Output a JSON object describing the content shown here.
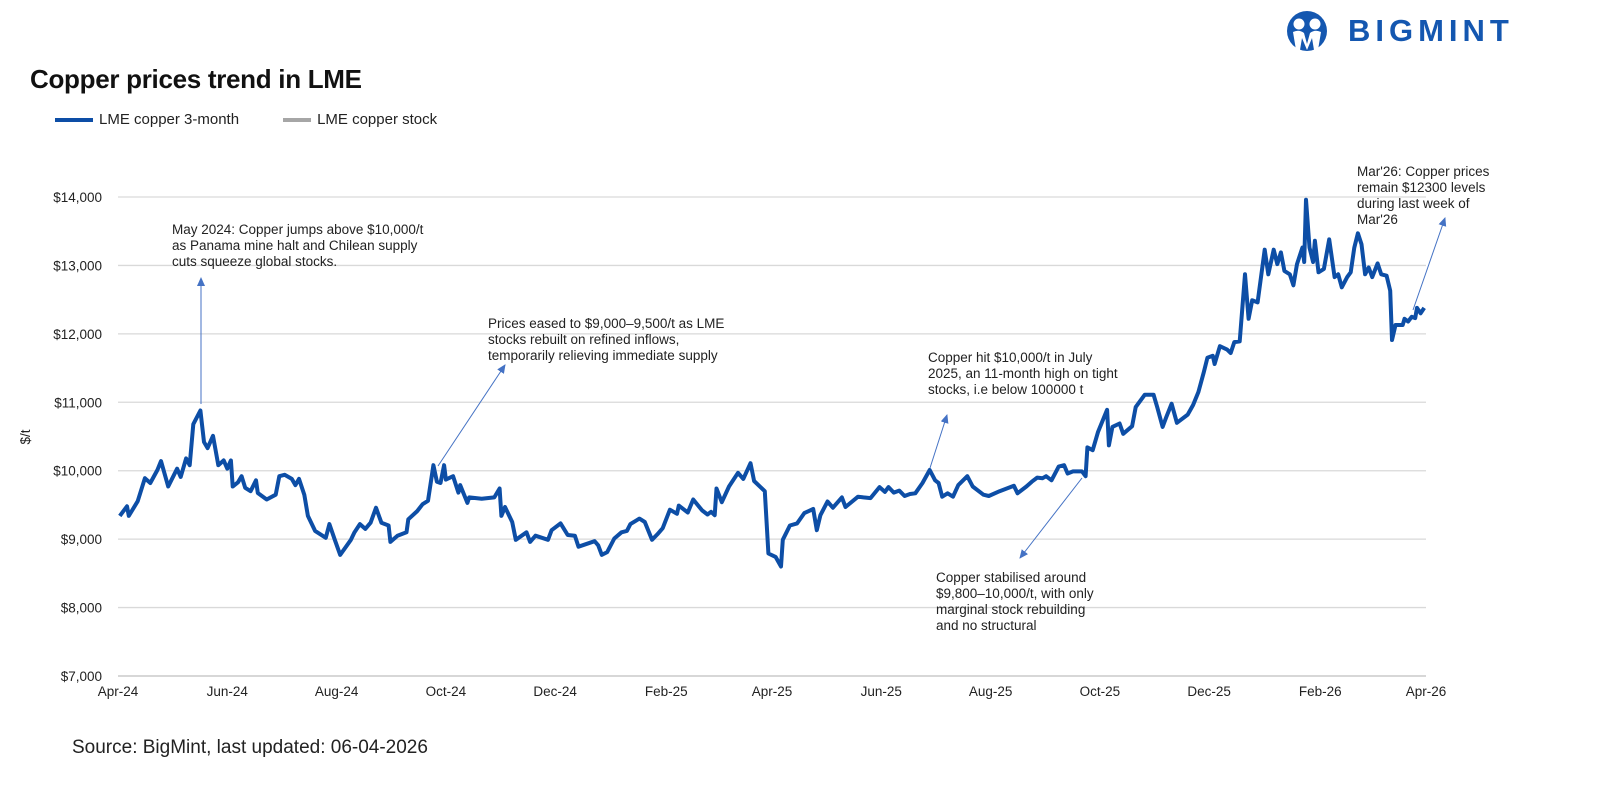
{
  "header": {
    "title": "Copper prices trend in LME",
    "logo_text": "BIGMINT",
    "source": "Source: BigMint, last updated: 06-04-2026"
  },
  "colors": {
    "series": "#0d4ea6",
    "stock": "#a6a6a6",
    "grid": "#d9d9d9",
    "annotation_arrow": "#4472c4",
    "brand": "#1457b0"
  },
  "annotations": [
    "May 2024: Copper jumps above $10,000/t\nas Panama mine halt and Chilean supply\ncuts squeeze global stocks.",
    "Prices eased to $9,000–9,500/t as LME\nstocks rebuilt on refined inflows,\ntemporarily relieving immediate supply",
    "Copper hit $10,000/t in July\n2025, an 11-month high on tight\nstocks, i.e below 100000 t",
    "Copper stabilised around\n$9,800–10,000/t, with only\nmarginal stock rebuilding\nand no structural",
    "Mar'26: Copper prices\nremain $12300 levels\nduring last week of\nMar'26"
  ],
  "chart_data": {
    "type": "line",
    "title": "Copper prices trend in LME",
    "xlabel": "",
    "ylabel": "$/t",
    "ylim": [
      7000,
      14000
    ],
    "xlim": [
      "2024-04-01",
      "2026-04-01"
    ],
    "grid": true,
    "legend_position": "top-left",
    "y_ticks": [
      "$7,000",
      "$8,000",
      "$9,000",
      "$10,000",
      "$11,000",
      "$12,000",
      "$13,000",
      "$14,000"
    ],
    "y_tick_values": [
      7000,
      8000,
      9000,
      10000,
      11000,
      12000,
      13000,
      14000
    ],
    "x_ticks": [
      "Apr-24",
      "Jun-24",
      "Aug-24",
      "Oct-24",
      "Dec-24",
      "Feb-25",
      "Apr-25",
      "Jun-25",
      "Aug-25",
      "Oct-25",
      "Dec-25",
      "Feb-26",
      "Apr-26"
    ],
    "x_tick_dates": [
      "2024-04-01",
      "2024-06-01",
      "2024-08-01",
      "2024-10-01",
      "2024-12-01",
      "2025-02-01",
      "2025-04-01",
      "2025-06-01",
      "2025-08-01",
      "2025-10-01",
      "2025-12-01",
      "2026-02-01",
      "2026-04-01"
    ],
    "legend": [
      "LME copper 3-month",
      "LME copper stock"
    ],
    "series": [
      {
        "name": "LME copper 3-month",
        "points": [
          [
            "2024-04-02",
            9340
          ],
          [
            "2024-04-06",
            9480
          ],
          [
            "2024-04-07",
            9340
          ],
          [
            "2024-04-12",
            9555
          ],
          [
            "2024-04-16",
            9890
          ],
          [
            "2024-04-19",
            9820
          ],
          [
            "2024-04-23",
            10010
          ],
          [
            "2024-04-25",
            10140
          ],
          [
            "2024-04-29",
            9770
          ],
          [
            "2024-05-04",
            10030
          ],
          [
            "2024-05-06",
            9910
          ],
          [
            "2024-05-09",
            10180
          ],
          [
            "2024-05-11",
            10080
          ],
          [
            "2024-05-13",
            10680
          ],
          [
            "2024-05-17",
            10880
          ],
          [
            "2024-05-19",
            10420
          ],
          [
            "2024-05-21",
            10330
          ],
          [
            "2024-05-24",
            10510
          ],
          [
            "2024-05-27",
            10080
          ],
          [
            "2024-05-30",
            10150
          ],
          [
            "2024-06-01",
            10030
          ],
          [
            "2024-06-03",
            10150
          ],
          [
            "2024-06-04",
            9770
          ],
          [
            "2024-06-07",
            9830
          ],
          [
            "2024-06-09",
            9920
          ],
          [
            "2024-06-11",
            9750
          ],
          [
            "2024-06-14",
            9700
          ],
          [
            "2024-06-17",
            9860
          ],
          [
            "2024-06-18",
            9675
          ],
          [
            "2024-06-23",
            9580
          ],
          [
            "2024-06-28",
            9650
          ],
          [
            "2024-06-30",
            9920
          ],
          [
            "2024-07-03",
            9940
          ],
          [
            "2024-07-07",
            9880
          ],
          [
            "2024-07-09",
            9790
          ],
          [
            "2024-07-11",
            9880
          ],
          [
            "2024-07-14",
            9650
          ],
          [
            "2024-07-16",
            9340
          ],
          [
            "2024-07-20",
            9120
          ],
          [
            "2024-07-26",
            9020
          ],
          [
            "2024-07-28",
            9220
          ],
          [
            "2024-07-31",
            8990
          ],
          [
            "2024-08-03",
            8770
          ],
          [
            "2024-08-09",
            8990
          ],
          [
            "2024-08-11",
            9100
          ],
          [
            "2024-08-14",
            9220
          ],
          [
            "2024-08-17",
            9150
          ],
          [
            "2024-08-20",
            9240
          ],
          [
            "2024-08-23",
            9460
          ],
          [
            "2024-08-26",
            9240
          ],
          [
            "2024-08-30",
            9200
          ],
          [
            "2024-08-31",
            8960
          ],
          [
            "2024-09-04",
            9050
          ],
          [
            "2024-09-09",
            9100
          ],
          [
            "2024-09-10",
            9290
          ],
          [
            "2024-09-15",
            9410
          ],
          [
            "2024-09-18",
            9510
          ],
          [
            "2024-09-21",
            9560
          ],
          [
            "2024-09-24",
            10080
          ],
          [
            "2024-09-26",
            9840
          ],
          [
            "2024-09-28",
            9820
          ],
          [
            "2024-09-30",
            10080
          ],
          [
            "2024-10-01",
            9870
          ],
          [
            "2024-10-05",
            9920
          ],
          [
            "2024-10-08",
            9680
          ],
          [
            "2024-10-09",
            9790
          ],
          [
            "2024-10-13",
            9530
          ],
          [
            "2024-10-14",
            9610
          ],
          [
            "2024-10-21",
            9590
          ],
          [
            "2024-10-28",
            9610
          ],
          [
            "2024-10-31",
            9740
          ],
          [
            "2024-11-01",
            9340
          ],
          [
            "2024-11-03",
            9470
          ],
          [
            "2024-11-07",
            9250
          ],
          [
            "2024-11-09",
            8990
          ],
          [
            "2024-11-15",
            9100
          ],
          [
            "2024-11-17",
            8960
          ],
          [
            "2024-11-20",
            9050
          ],
          [
            "2024-11-27",
            8990
          ],
          [
            "2024-11-29",
            9130
          ],
          [
            "2024-12-04",
            9230
          ],
          [
            "2024-12-08",
            9060
          ],
          [
            "2024-12-12",
            9050
          ],
          [
            "2024-12-14",
            8890
          ],
          [
            "2024-12-23",
            8970
          ],
          [
            "2024-12-25",
            8910
          ],
          [
            "2024-12-27",
            8770
          ],
          [
            "2024-12-30",
            8810
          ],
          [
            "2025-01-03",
            9010
          ],
          [
            "2025-01-07",
            9100
          ],
          [
            "2025-01-10",
            9120
          ],
          [
            "2025-01-12",
            9220
          ],
          [
            "2025-01-17",
            9300
          ],
          [
            "2025-01-20",
            9250
          ],
          [
            "2025-01-24",
            8990
          ],
          [
            "2025-01-27",
            9070
          ],
          [
            "2025-01-30",
            9160
          ],
          [
            "2025-02-03",
            9430
          ],
          [
            "2025-02-07",
            9370
          ],
          [
            "2025-02-08",
            9490
          ],
          [
            "2025-02-13",
            9390
          ],
          [
            "2025-02-16",
            9580
          ],
          [
            "2025-02-21",
            9420
          ],
          [
            "2025-02-24",
            9360
          ],
          [
            "2025-02-26",
            9400
          ],
          [
            "2025-02-28",
            9350
          ],
          [
            "2025-03-01",
            9740
          ],
          [
            "2025-03-04",
            9540
          ],
          [
            "2025-03-08",
            9770
          ],
          [
            "2025-03-13",
            9970
          ],
          [
            "2025-03-16",
            9880
          ],
          [
            "2025-03-20",
            10110
          ],
          [
            "2025-03-22",
            9850
          ],
          [
            "2025-03-28",
            9700
          ],
          [
            "2025-03-30",
            8790
          ],
          [
            "2025-04-03",
            8740
          ],
          [
            "2025-04-06",
            8600
          ],
          [
            "2025-04-07",
            8990
          ],
          [
            "2025-04-11",
            9200
          ],
          [
            "2025-04-15",
            9230
          ],
          [
            "2025-04-19",
            9380
          ],
          [
            "2025-04-24",
            9440
          ],
          [
            "2025-04-26",
            9130
          ],
          [
            "2025-04-28",
            9350
          ],
          [
            "2025-05-02",
            9550
          ],
          [
            "2025-05-05",
            9460
          ],
          [
            "2025-05-10",
            9610
          ],
          [
            "2025-05-12",
            9470
          ],
          [
            "2025-05-19",
            9620
          ],
          [
            "2025-05-22",
            9610
          ],
          [
            "2025-05-26",
            9600
          ],
          [
            "2025-05-31",
            9760
          ],
          [
            "2025-06-03",
            9690
          ],
          [
            "2025-06-05",
            9760
          ],
          [
            "2025-06-08",
            9680
          ],
          [
            "2025-06-11",
            9710
          ],
          [
            "2025-06-14",
            9630
          ],
          [
            "2025-06-17",
            9660
          ],
          [
            "2025-06-20",
            9670
          ],
          [
            "2025-06-24",
            9820
          ],
          [
            "2025-06-28",
            10010
          ],
          [
            "2025-07-01",
            9860
          ],
          [
            "2025-07-03",
            9820
          ],
          [
            "2025-07-05",
            9620
          ],
          [
            "2025-07-08",
            9670
          ],
          [
            "2025-07-11",
            9620
          ],
          [
            "2025-07-14",
            9790
          ],
          [
            "2025-07-19",
            9920
          ],
          [
            "2025-07-22",
            9770
          ],
          [
            "2025-07-28",
            9650
          ],
          [
            "2025-07-31",
            9630
          ],
          [
            "2025-08-06",
            9700
          ],
          [
            "2025-08-14",
            9780
          ],
          [
            "2025-08-16",
            9670
          ],
          [
            "2025-08-21",
            9770
          ],
          [
            "2025-08-24",
            9840
          ],
          [
            "2025-08-27",
            9900
          ],
          [
            "2025-08-30",
            9890
          ],
          [
            "2025-09-01",
            9920
          ],
          [
            "2025-09-04",
            9860
          ],
          [
            "2025-09-08",
            10060
          ],
          [
            "2025-09-11",
            10080
          ],
          [
            "2025-09-13",
            9960
          ],
          [
            "2025-09-16",
            9990
          ],
          [
            "2025-09-21",
            9990
          ],
          [
            "2025-09-23",
            9920
          ],
          [
            "2025-09-24",
            10340
          ],
          [
            "2025-09-27",
            10300
          ],
          [
            "2025-09-30",
            10570
          ],
          [
            "2025-10-05",
            10890
          ],
          [
            "2025-10-06",
            10370
          ],
          [
            "2025-10-08",
            10640
          ],
          [
            "2025-10-12",
            10690
          ],
          [
            "2025-10-14",
            10540
          ],
          [
            "2025-10-19",
            10650
          ],
          [
            "2025-10-21",
            10930
          ],
          [
            "2025-10-26",
            11110
          ],
          [
            "2025-10-31",
            11110
          ],
          [
            "2025-11-02",
            10930
          ],
          [
            "2025-11-05",
            10640
          ],
          [
            "2025-11-07",
            10780
          ],
          [
            "2025-11-10",
            10980
          ],
          [
            "2025-11-13",
            10700
          ],
          [
            "2025-11-19",
            10820
          ],
          [
            "2025-11-22",
            10960
          ],
          [
            "2025-11-25",
            11150
          ],
          [
            "2025-11-28",
            11440
          ],
          [
            "2025-11-30",
            11650
          ],
          [
            "2025-12-03",
            11680
          ],
          [
            "2025-12-04",
            11560
          ],
          [
            "2025-12-07",
            11820
          ],
          [
            "2025-12-11",
            11770
          ],
          [
            "2025-12-13",
            11720
          ],
          [
            "2025-12-15",
            11880
          ],
          [
            "2025-12-18",
            11890
          ],
          [
            "2025-12-21",
            12870
          ],
          [
            "2025-12-23",
            12220
          ],
          [
            "2025-12-25",
            12490
          ],
          [
            "2025-12-28",
            12460
          ],
          [
            "2026-01-01",
            13230
          ],
          [
            "2026-01-03",
            12870
          ],
          [
            "2026-01-06",
            13230
          ],
          [
            "2026-01-08",
            13020
          ],
          [
            "2026-01-10",
            13190
          ],
          [
            "2026-01-12",
            12920
          ],
          [
            "2026-01-15",
            12870
          ],
          [
            "2026-01-17",
            12710
          ],
          [
            "2026-01-19",
            13020
          ],
          [
            "2026-01-22",
            13260
          ],
          [
            "2026-01-23",
            13050
          ],
          [
            "2026-01-24",
            13960
          ],
          [
            "2026-01-26",
            13260
          ],
          [
            "2026-01-28",
            13050
          ],
          [
            "2026-01-29",
            13360
          ],
          [
            "2026-01-31",
            12900
          ],
          [
            "2026-02-03",
            12950
          ],
          [
            "2026-02-06",
            13380
          ],
          [
            "2026-02-09",
            12830
          ],
          [
            "2026-02-11",
            12870
          ],
          [
            "2026-02-13",
            12680
          ],
          [
            "2026-02-16",
            12830
          ],
          [
            "2026-02-18",
            12900
          ],
          [
            "2026-02-20",
            13260
          ],
          [
            "2026-02-22",
            13470
          ],
          [
            "2026-02-24",
            13310
          ],
          [
            "2026-02-26",
            12870
          ],
          [
            "2026-02-28",
            12970
          ],
          [
            "2026-03-02",
            12830
          ],
          [
            "2026-03-05",
            13030
          ],
          [
            "2026-03-07",
            12870
          ],
          [
            "2026-03-10",
            12850
          ],
          [
            "2026-03-12",
            12630
          ],
          [
            "2026-03-13",
            11910
          ],
          [
            "2026-03-15",
            12130
          ],
          [
            "2026-03-19",
            12130
          ],
          [
            "2026-03-20",
            12220
          ],
          [
            "2026-03-22",
            12180
          ],
          [
            "2026-03-24",
            12250
          ],
          [
            "2026-03-26",
            12230
          ],
          [
            "2026-03-27",
            12380
          ],
          [
            "2026-03-29",
            12300
          ],
          [
            "2026-03-31",
            12380
          ]
        ]
      }
    ]
  }
}
